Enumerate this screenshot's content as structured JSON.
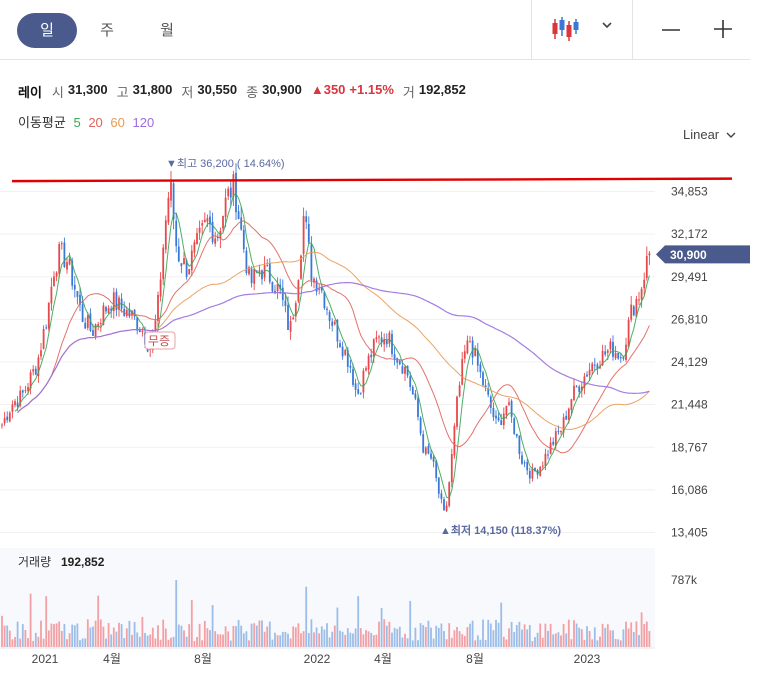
{
  "tabs": [
    {
      "label": "일",
      "active": true
    },
    {
      "label": "주",
      "active": false
    },
    {
      "label": "월",
      "active": false
    }
  ],
  "toolbar": {
    "chart_type_icon": "candlestick-icon",
    "dropdown_icon": "chevron-down-icon",
    "zoom_out_icon": "minus-icon",
    "zoom_in_icon": "plus-icon"
  },
  "quote": {
    "name": "레이",
    "open_label": "시",
    "open": "31,300",
    "high_label": "고",
    "high": "31,800",
    "low_label": "저",
    "low": "30,550",
    "close_label": "종",
    "close": "30,900",
    "change": "▲350",
    "change_pct": "+1.15%",
    "volume_label": "거",
    "volume": "192,852"
  },
  "moving_average": {
    "label": "이동평균",
    "periods": [
      {
        "label": "5",
        "color": "#3aa655"
      },
      {
        "label": "20",
        "color": "#e0645a"
      },
      {
        "label": "60",
        "color": "#e89a52"
      },
      {
        "label": "120",
        "color": "#9a6ee0"
      }
    ]
  },
  "scale_selector": {
    "label": "Linear"
  },
  "colors": {
    "up": "#e8474b",
    "down": "#3a78d8",
    "accent": "#4a5a8c",
    "hline": "#e00000"
  },
  "chart_data": {
    "type": "candlestick",
    "price_ticks": [
      "34,853",
      "32,172",
      "29,491",
      "26,810",
      "24,129",
      "21,448",
      "18,767",
      "16,086",
      "13,405"
    ],
    "price_ylim": [
      13405,
      36500
    ],
    "x_labels": [
      "2021",
      "4월",
      "8월",
      "2022",
      "4월",
      "8월",
      "2023"
    ],
    "current_price_label": "30,900",
    "current_price": 30900,
    "high_annotation": "▼최고 36,200 ( 14.64%)",
    "high_value": 36200,
    "low_annotation": "▲최저 14,150 (118.37%)",
    "low_value": 14150,
    "badge": "무증",
    "horizontal_line_value": 35600,
    "close_path": [
      [
        0,
        20200
      ],
      [
        10,
        21500
      ],
      [
        20,
        22000
      ],
      [
        35,
        24000
      ],
      [
        45,
        27000
      ],
      [
        52,
        30000
      ],
      [
        58,
        31000
      ],
      [
        65,
        30500
      ],
      [
        72,
        29000
      ],
      [
        80,
        27000
      ],
      [
        90,
        26000
      ],
      [
        100,
        27200
      ],
      [
        110,
        28000
      ],
      [
        120,
        27500
      ],
      [
        130,
        27000
      ],
      [
        140,
        26200
      ],
      [
        148,
        25000
      ],
      [
        155,
        27000
      ],
      [
        162,
        32000
      ],
      [
        168,
        35500
      ],
      [
        175,
        31000
      ],
      [
        185,
        30000
      ],
      [
        195,
        31500
      ],
      [
        205,
        33000
      ],
      [
        215,
        32000
      ],
      [
        225,
        34500
      ],
      [
        232,
        35200
      ],
      [
        240,
        32000
      ],
      [
        248,
        29000
      ],
      [
        258,
        30000
      ],
      [
        268,
        29500
      ],
      [
        278,
        28500
      ],
      [
        288,
        26000
      ],
      [
        295,
        29000
      ],
      [
        302,
        33500
      ],
      [
        310,
        29500
      ],
      [
        318,
        29000
      ],
      [
        328,
        27000
      ],
      [
        338,
        25500
      ],
      [
        348,
        24000
      ],
      [
        355,
        22000
      ],
      [
        365,
        24000
      ],
      [
        375,
        25500
      ],
      [
        385,
        25800
      ],
      [
        395,
        24500
      ],
      [
        405,
        23500
      ],
      [
        415,
        21000
      ],
      [
        422,
        18500
      ],
      [
        430,
        18000
      ],
      [
        438,
        15500
      ],
      [
        443,
        14300
      ],
      [
        448,
        17000
      ],
      [
        455,
        21500
      ],
      [
        462,
        24500
      ],
      [
        468,
        25500
      ],
      [
        475,
        24000
      ],
      [
        485,
        22000
      ],
      [
        495,
        20000
      ],
      [
        505,
        21500
      ],
      [
        512,
        20000
      ],
      [
        520,
        18000
      ],
      [
        530,
        17000
      ],
      [
        540,
        17800
      ],
      [
        550,
        19000
      ],
      [
        560,
        20000
      ],
      [
        570,
        22000
      ],
      [
        580,
        23000
      ],
      [
        590,
        24000
      ],
      [
        600,
        24500
      ],
      [
        610,
        25000
      ],
      [
        620,
        24500
      ],
      [
        630,
        27500
      ],
      [
        638,
        28500
      ],
      [
        645,
        30500
      ],
      [
        650,
        31500
      ]
    ],
    "ma5_color": "#3aa655",
    "ma20_color": "#e0645a",
    "ma60_color": "#e89a52",
    "ma120_color": "#9a6ee0",
    "volume_label": "거래량",
    "volume_value": "192,852",
    "volume_tick": "787k",
    "volume_max": 787000
  }
}
